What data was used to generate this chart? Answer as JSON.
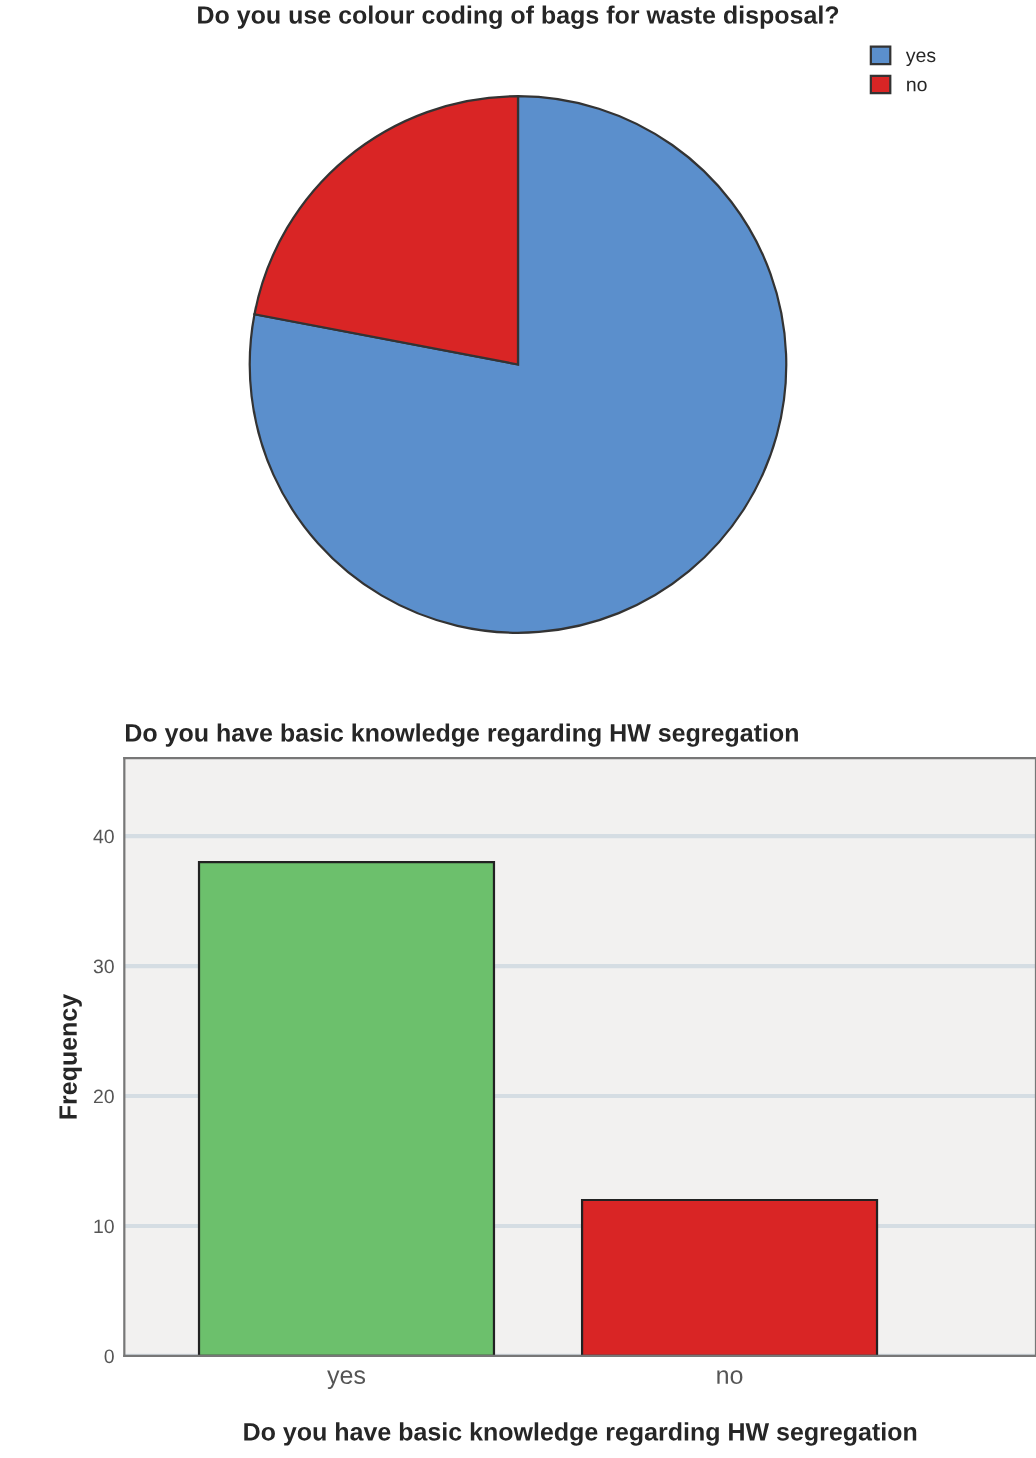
{
  "chart_data": [
    {
      "type": "pie",
      "title": "Do you use colour coding of bags for waste disposal?",
      "categories": [
        "yes",
        "no"
      ],
      "values": [
        78,
        22
      ],
      "colors": [
        "#5b8fcc",
        "#d92525"
      ],
      "legend": "top right"
    },
    {
      "type": "bar",
      "title": "Do you have basic knowledge regarding HW segregation",
      "xlabel": "Do you have basic knowledge regarding HW segregation",
      "ylabel": "Frequency",
      "categories": [
        "yes",
        "no"
      ],
      "values": [
        38,
        12
      ],
      "colors": [
        "#6cc06c",
        "#d92525"
      ],
      "ylim": [
        0,
        46
      ],
      "yticks": [
        0,
        10,
        20,
        30,
        40
      ],
      "grid": "y",
      "legend": false
    }
  ]
}
